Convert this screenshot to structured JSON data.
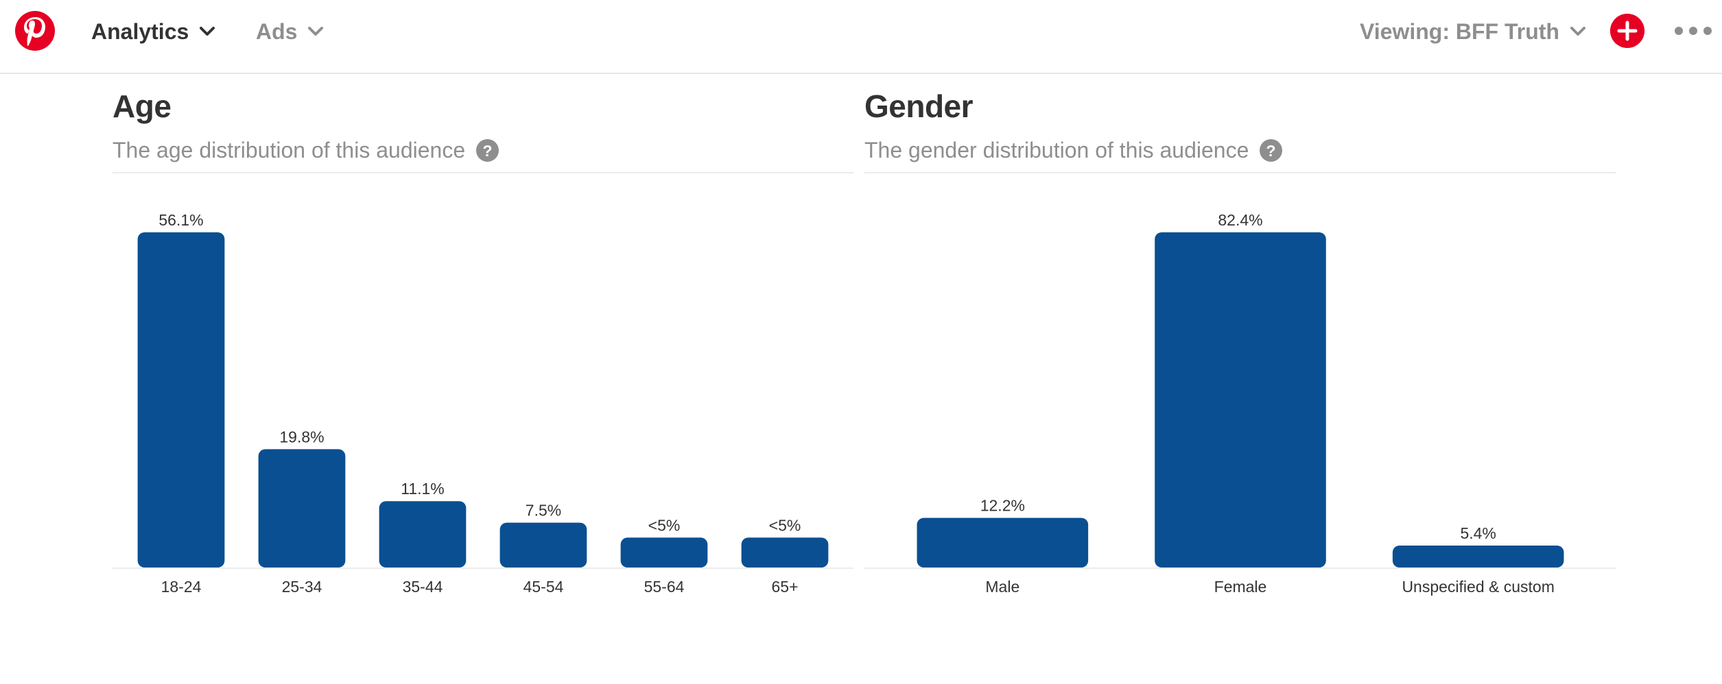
{
  "header": {
    "nav": [
      {
        "label": "Analytics"
      },
      {
        "label": "Ads"
      }
    ],
    "viewing_label": "Viewing: BFF Truth",
    "logo_icon": "pinterest-logo",
    "add_icon": "plus-icon",
    "more_icon": "ellipsis-icon",
    "brand_color": "#e60023"
  },
  "age_section": {
    "title": "Age",
    "subtitle": "The age distribution of this audience",
    "help_icon": "question-icon"
  },
  "gender_section": {
    "title": "Gender",
    "subtitle": "The gender distribution of this audience",
    "help_icon": "question-icon"
  },
  "chart_data": [
    {
      "type": "bar",
      "title": "Age",
      "categories": [
        "18-24",
        "25-34",
        "35-44",
        "45-54",
        "55-64",
        "65+"
      ],
      "values": [
        56.1,
        19.8,
        11.1,
        7.5,
        5,
        5
      ],
      "labels": [
        "56.1%",
        "19.8%",
        "11.1%",
        "7.5%",
        "<5%",
        "<5%"
      ],
      "ylim": [
        0,
        56.1
      ],
      "bar_color": "#0a4f92",
      "grid": false
    },
    {
      "type": "bar",
      "title": "Gender",
      "categories": [
        "Male",
        "Female",
        "Unspecified & custom"
      ],
      "values": [
        12.2,
        82.4,
        5.4
      ],
      "labels": [
        "12.2%",
        "82.4%",
        "5.4%"
      ],
      "ylim": [
        0,
        82.4
      ],
      "bar_color": "#0a4f92",
      "grid": false
    }
  ]
}
